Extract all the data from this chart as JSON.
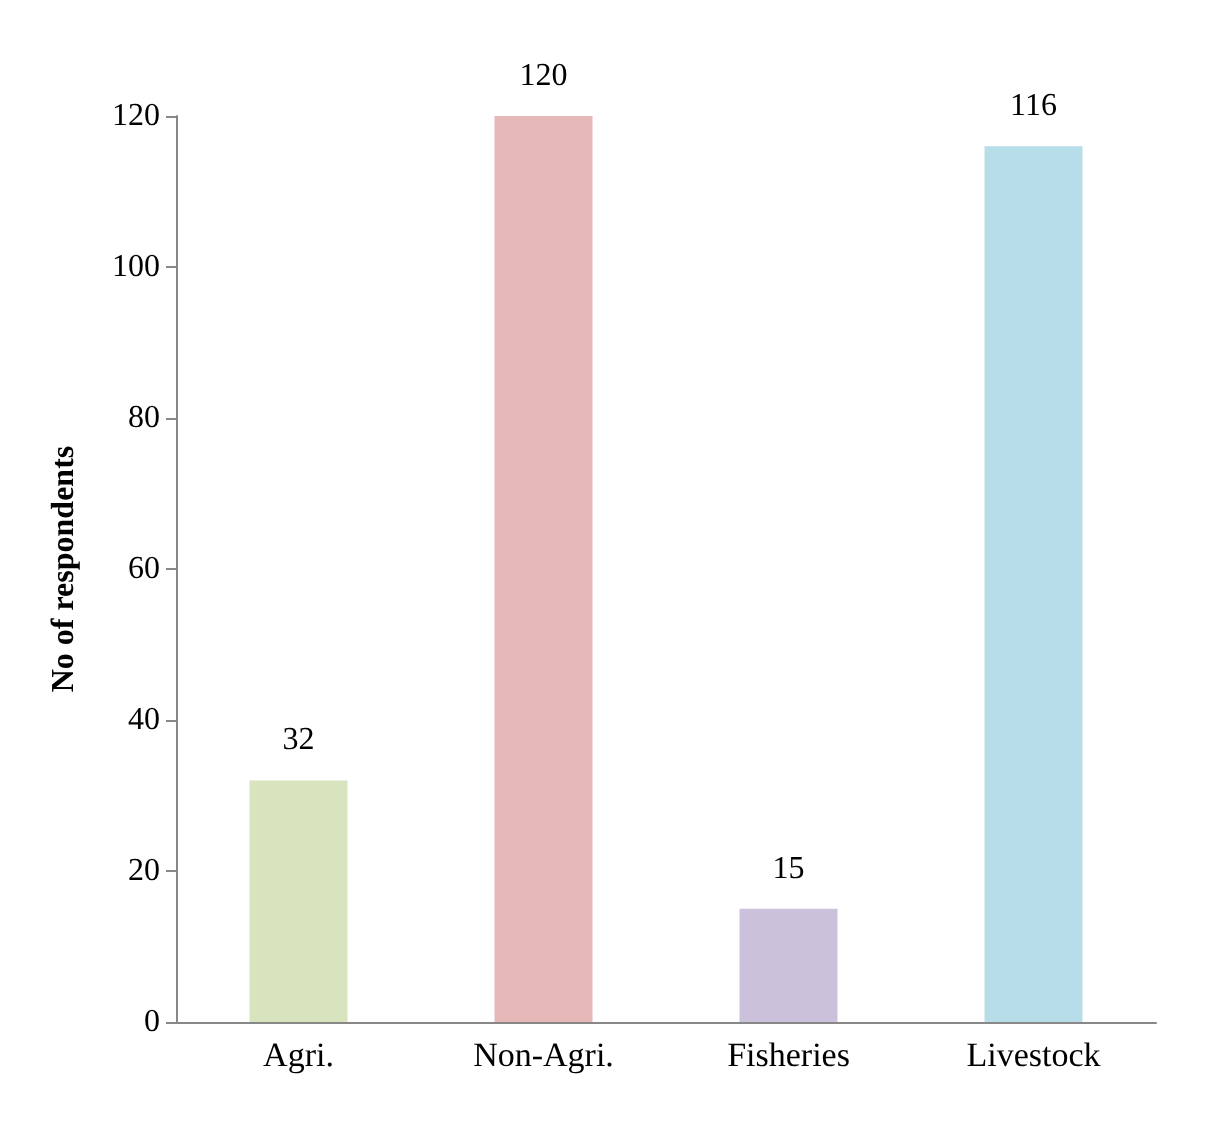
{
  "chart_data": {
    "type": "bar",
    "ylabel": "No of respondents",
    "categories": [
      "Agri.",
      "Non-Agri.",
      "Fisheries",
      "Livestock"
    ],
    "values": [
      32,
      120,
      15,
      116
    ],
    "colors": [
      "#d7e4bd",
      "#e6b9b8",
      "#ccc1da",
      "#b7dee8"
    ],
    "ylim": [
      0,
      120
    ],
    "yticks": [
      0,
      20,
      40,
      60,
      80,
      100,
      120
    ],
    "grid": false,
    "data_labels": true
  }
}
